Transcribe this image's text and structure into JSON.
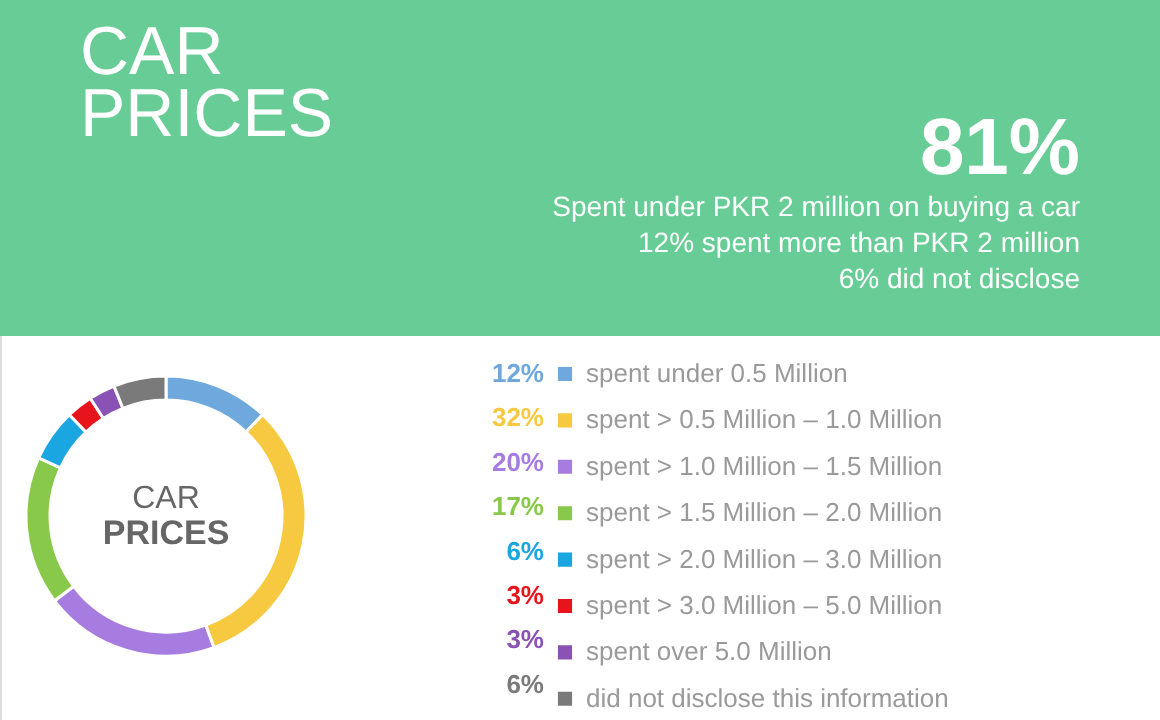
{
  "chart_data": {
    "type": "donut",
    "title": "CAR PRICES",
    "categories": [
      "spent under 0.5 Million",
      "spent > 0.5 Million – 1.0 Million",
      "spent > 1.0 Million – 1.5 Million",
      "spent > 1.5 Million – 2.0 Million",
      "spent > 2.0 Million – 3.0 Million",
      "spent > 3.0 Million – 5.0 Million",
      "spent over 5.0 Million",
      "did not disclose this information"
    ],
    "values": [
      12,
      32,
      20,
      17,
      6,
      3,
      3,
      6
    ],
    "value_labels": [
      "12%",
      "32%",
      "20%",
      "17%",
      "6%",
      "3%",
      "3%",
      "6%"
    ],
    "colors": [
      "#6fa8dc",
      "#f7c940",
      "#a77ce0",
      "#88c84a",
      "#1aa6e0",
      "#e8141c",
      "#8a52b4",
      "#7a7a7a"
    ],
    "legend": "right",
    "annotations": [
      "81%",
      "Spent under PKR 2 million on buying a car",
      "12% spent more than PKR 2 million",
      "6% did not disclose",
      "CAR PRICES"
    ]
  }
}
